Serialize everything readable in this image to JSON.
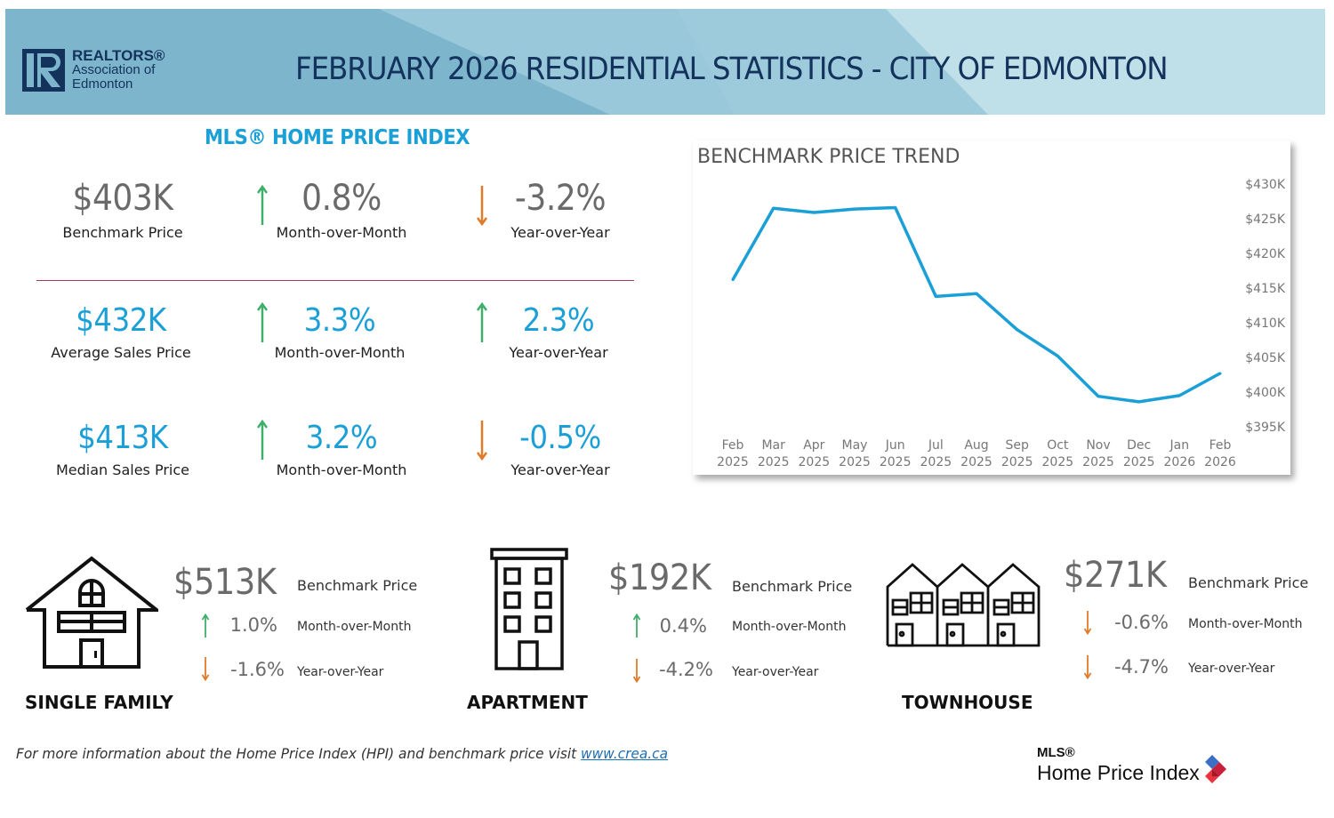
{
  "header": {
    "logo": {
      "line1": "REALTORS®",
      "line2": "Association of",
      "line3": "Edmonton",
      "icon": "realtor-r-icon"
    },
    "title": "FEBRUARY 2026 RESIDENTIAL STATISTICS - CITY OF EDMONTON"
  },
  "colors": {
    "banner_dark": "#7db5cc",
    "banner_mid": "#98c8da",
    "banner_light": "#bfdfe9",
    "navy": "#13325c",
    "accent_blue": "#1a9fd6",
    "up_green": "#3fae6a",
    "down_orange": "#e07b2a",
    "divider_red": "#a43c4b",
    "line": "#1a9fd6"
  },
  "hpi": {
    "title": "MLS® HOME PRICE INDEX",
    "rows": [
      {
        "main": {
          "value": "$403K",
          "label": "Benchmark Price"
        },
        "mom": {
          "value": "0.8%",
          "label": "Month-over-Month",
          "direction": "up"
        },
        "yoy": {
          "value": "-3.2%",
          "label": "Year-over-Year",
          "direction": "down"
        }
      },
      {
        "main": {
          "value": "$432K",
          "label": "Average Sales Price"
        },
        "mom": {
          "value": "3.3%",
          "label": "Month-over-Month",
          "direction": "up"
        },
        "yoy": {
          "value": "2.3%",
          "label": "Year-over-Year",
          "direction": "up"
        }
      },
      {
        "main": {
          "value": "$413K",
          "label": "Median Sales Price"
        },
        "mom": {
          "value": "3.2%",
          "label": "Month-over-Month",
          "direction": "up"
        },
        "yoy": {
          "value": "-0.5%",
          "label": "Year-over-Year",
          "direction": "down"
        }
      }
    ]
  },
  "chart_data": {
    "type": "line",
    "title": "BENCHMARK PRICE TREND",
    "xlabel": "",
    "ylabel": "",
    "categories": [
      "Feb 2025",
      "Mar 2025",
      "Apr 2025",
      "May 2025",
      "Jun 2025",
      "Jul 2025",
      "Aug 2025",
      "Sep 2025",
      "Oct 2025",
      "Nov 2025",
      "Dec 2025",
      "Jan 2026",
      "Feb 2026"
    ],
    "x_tick_labels": [
      [
        "Feb",
        "2025"
      ],
      [
        "Mar",
        "2025"
      ],
      [
        "Apr",
        "2025"
      ],
      [
        "May",
        "2025"
      ],
      [
        "Jun",
        "2025"
      ],
      [
        "Jul",
        "2025"
      ],
      [
        "Aug",
        "2025"
      ],
      [
        "Sep",
        "2025"
      ],
      [
        "Oct",
        "2025"
      ],
      [
        "Nov",
        "2025"
      ],
      [
        "Dec",
        "2025"
      ],
      [
        "Jan",
        "2026"
      ],
      [
        "Feb",
        "2026"
      ]
    ],
    "series": [
      {
        "name": "Benchmark Price",
        "values": [
          416.2,
          426.5,
          425.9,
          426.4,
          426.6,
          413.8,
          414.2,
          409.0,
          405.2,
          399.4,
          398.6,
          399.5,
          402.7
        ]
      }
    ],
    "units": "$K",
    "ylim": [
      395,
      430
    ],
    "y_ticks": [
      430,
      425,
      420,
      415,
      410,
      405,
      400,
      395
    ],
    "y_tick_labels": [
      "$430K",
      "$425K",
      "$420K",
      "$415K",
      "$410K",
      "$405K",
      "$400K",
      "$395K"
    ],
    "y_axis_side": "right",
    "grid": false,
    "legend": "none"
  },
  "property_types": [
    {
      "name": "SINGLE FAMILY",
      "icon": "single-family-house-icon",
      "price": "$513K",
      "price_label": "Benchmark Price",
      "mom": {
        "value": "1.0%",
        "label": "Month-over-Month",
        "direction": "up"
      },
      "yoy": {
        "value": "-1.6%",
        "label": "Year-over-Year",
        "direction": "down"
      }
    },
    {
      "name": "APARTMENT",
      "icon": "apartment-building-icon",
      "price": "$192K",
      "price_label": "Benchmark Price",
      "mom": {
        "value": "0.4%",
        "label": "Month-over-Month",
        "direction": "up"
      },
      "yoy": {
        "value": "-4.2%",
        "label": "Year-over-Year",
        "direction": "down"
      }
    },
    {
      "name": "TOWNHOUSE",
      "icon": "townhouse-row-icon",
      "price": "$271K",
      "price_label": "Benchmark Price",
      "mom": {
        "value": "-0.6%",
        "label": "Month-over-Month",
        "direction": "down"
      },
      "yoy": {
        "value": "-4.7%",
        "label": "Year-over-Year",
        "direction": "down"
      }
    }
  ],
  "footer": {
    "text": "For more information about the Home Price Index (HPI) and benchmark price visit ",
    "link": "www.crea.ca"
  },
  "mls_logo": {
    "line1": "MLS®",
    "line2": "Home Price Index"
  }
}
